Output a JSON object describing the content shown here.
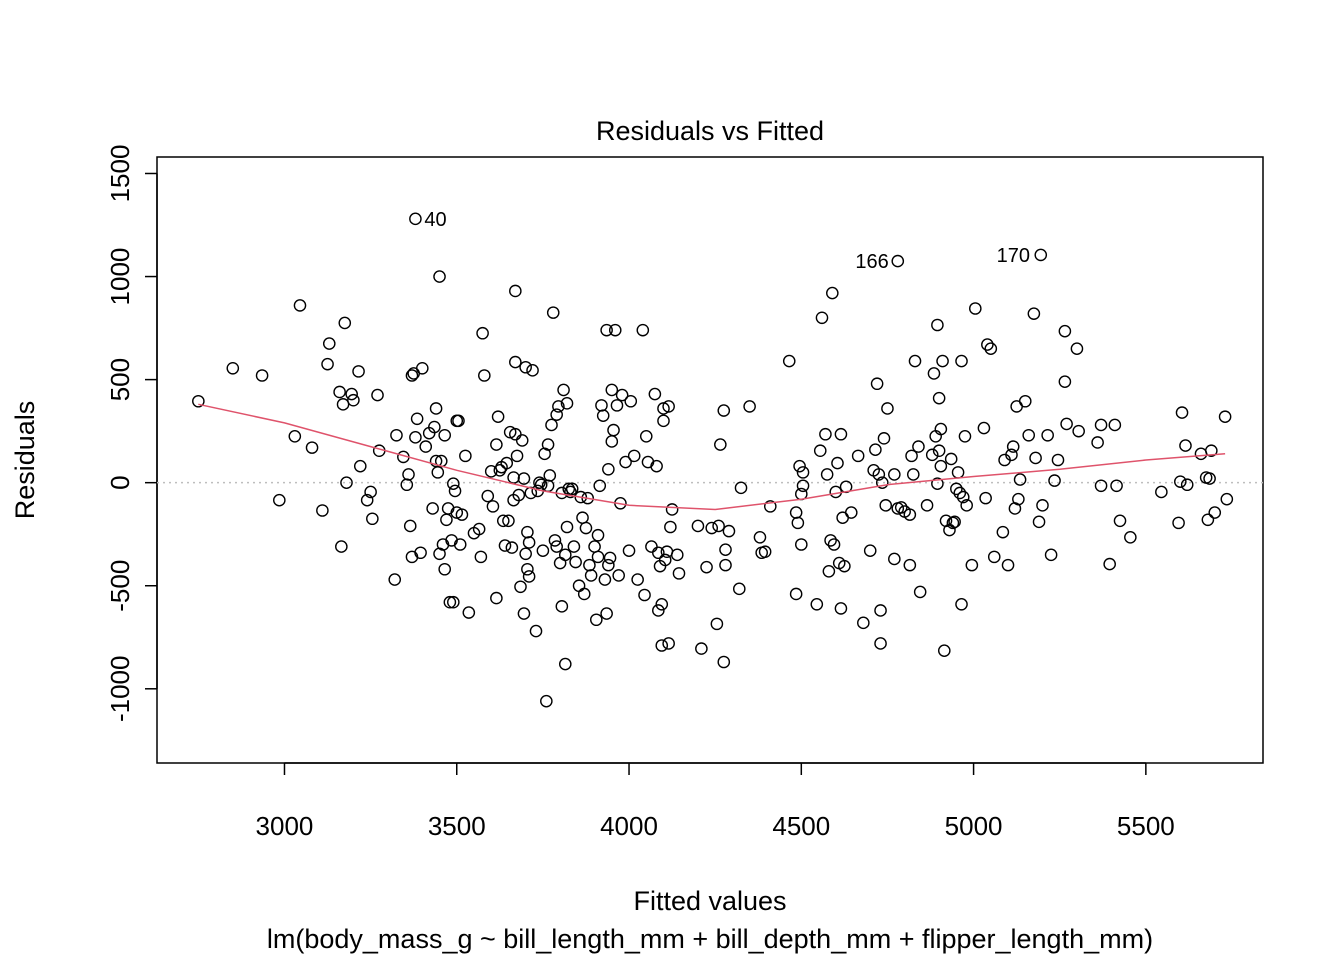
{
  "chart_data": {
    "type": "scatter",
    "title": "Residuals vs Fitted",
    "xlabel": "Fitted values",
    "subtitle": "lm(body_mass_g ~ bill_length_mm + bill_depth_mm + flipper_length_mm)",
    "ylabel": "Residuals",
    "xlim": [
      2630,
      5840
    ],
    "ylim": [
      -1360,
      1580
    ],
    "x_ticks": [
      3000,
      3500,
      4000,
      4500,
      5000,
      5500
    ],
    "x_tick_labels": [
      "3000",
      "3500",
      "4000",
      "4500",
      "5000",
      "5500"
    ],
    "y_ticks": [
      -1000,
      -500,
      0,
      500,
      1000,
      1500
    ],
    "y_tick_labels": [
      "-1000",
      "-500",
      "0",
      "500",
      "1000",
      "1500"
    ],
    "reference_line": {
      "y": 0,
      "style": "dotted",
      "color": "#bebebe"
    },
    "smoother": {
      "color": "#df536b",
      "x": [
        2750,
        3000,
        3250,
        3500,
        3750,
        4000,
        4250,
        4500,
        4750,
        5000,
        5250,
        5500,
        5730
      ],
      "y": [
        380,
        290,
        175,
        60,
        -40,
        -110,
        -130,
        -80,
        -10,
        30,
        65,
        110,
        140
      ]
    },
    "labeled_points": [
      {
        "label": "40",
        "x": 3380,
        "y": 1280
      },
      {
        "label": "166",
        "x": 4780,
        "y": 1075
      },
      {
        "label": "170",
        "x": 5190,
        "y": 1105
      }
    ],
    "points": [
      [
        2750,
        395
      ],
      [
        2850,
        555
      ],
      [
        2935,
        520
      ],
      [
        2985,
        -85
      ],
      [
        3030,
        225
      ],
      [
        3045,
        860
      ],
      [
        3080,
        170
      ],
      [
        3110,
        -135
      ],
      [
        3125,
        575
      ],
      [
        3130,
        675
      ],
      [
        3160,
        440
      ],
      [
        3165,
        -310
      ],
      [
        3170,
        380
      ],
      [
        3175,
        775
      ],
      [
        3180,
        0
      ],
      [
        3195,
        430
      ],
      [
        3200,
        400
      ],
      [
        3215,
        540
      ],
      [
        3220,
        80
      ],
      [
        3240,
        -85
      ],
      [
        3250,
        -45
      ],
      [
        3255,
        -175
      ],
      [
        3270,
        425
      ],
      [
        3275,
        155
      ],
      [
        3320,
        -470
      ],
      [
        3325,
        230
      ],
      [
        3345,
        125
      ],
      [
        3355,
        -10
      ],
      [
        3360,
        40
      ],
      [
        3365,
        -210
      ],
      [
        3370,
        -360
      ],
      [
        3370,
        520
      ],
      [
        3375,
        530
      ],
      [
        3380,
        1280
      ],
      [
        3380,
        220
      ],
      [
        3385,
        310
      ],
      [
        3395,
        -340
      ],
      [
        3400,
        555
      ],
      [
        3410,
        175
      ],
      [
        3420,
        240
      ],
      [
        3430,
        -125
      ],
      [
        3435,
        270
      ],
      [
        3440,
        360
      ],
      [
        3440,
        105
      ],
      [
        3445,
        50
      ],
      [
        3450,
        -345
      ],
      [
        3450,
        1000
      ],
      [
        3455,
        105
      ],
      [
        3460,
        -300
      ],
      [
        3465,
        230
      ],
      [
        3465,
        -420
      ],
      [
        3470,
        -180
      ],
      [
        3475,
        -125
      ],
      [
        3480,
        -580
      ],
      [
        3485,
        -280
      ],
      [
        3490,
        -580
      ],
      [
        3490,
        -5
      ],
      [
        3495,
        -40
      ],
      [
        3500,
        -145
      ],
      [
        3500,
        300
      ],
      [
        3505,
        300
      ],
      [
        3510,
        -300
      ],
      [
        3515,
        -155
      ],
      [
        3525,
        130
      ],
      [
        3535,
        -630
      ],
      [
        3550,
        -245
      ],
      [
        3565,
        -225
      ],
      [
        3570,
        -360
      ],
      [
        3575,
        725
      ],
      [
        3580,
        520
      ],
      [
        3590,
        -65
      ],
      [
        3600,
        55
      ],
      [
        3605,
        -115
      ],
      [
        3615,
        -560
      ],
      [
        3615,
        185
      ],
      [
        3620,
        320
      ],
      [
        3625,
        60
      ],
      [
        3630,
        75
      ],
      [
        3635,
        -185
      ],
      [
        3640,
        -305
      ],
      [
        3645,
        95
      ],
      [
        3650,
        -185
      ],
      [
        3655,
        245
      ],
      [
        3660,
        -315
      ],
      [
        3665,
        -85
      ],
      [
        3665,
        25
      ],
      [
        3670,
        235
      ],
      [
        3670,
        585
      ],
      [
        3670,
        930
      ],
      [
        3675,
        130
      ],
      [
        3680,
        -60
      ],
      [
        3685,
        -505
      ],
      [
        3690,
        205
      ],
      [
        3695,
        -635
      ],
      [
        3695,
        20
      ],
      [
        3700,
        -345
      ],
      [
        3700,
        560
      ],
      [
        3705,
        -420
      ],
      [
        3705,
        -240
      ],
      [
        3710,
        -455
      ],
      [
        3710,
        -290
      ],
      [
        3715,
        -50
      ],
      [
        3720,
        545
      ],
      [
        3730,
        -720
      ],
      [
        3735,
        -40
      ],
      [
        3740,
        0
      ],
      [
        3745,
        -10
      ],
      [
        3750,
        -330
      ],
      [
        3755,
        140
      ],
      [
        3760,
        -1060
      ],
      [
        3765,
        185
      ],
      [
        3765,
        -15
      ],
      [
        3770,
        35
      ],
      [
        3775,
        280
      ],
      [
        3780,
        825
      ],
      [
        3785,
        -280
      ],
      [
        3790,
        330
      ],
      [
        3790,
        -310
      ],
      [
        3795,
        370
      ],
      [
        3800,
        -390
      ],
      [
        3805,
        -50
      ],
      [
        3805,
        -600
      ],
      [
        3810,
        450
      ],
      [
        3815,
        -880
      ],
      [
        3815,
        -350
      ],
      [
        3820,
        385
      ],
      [
        3820,
        -215
      ],
      [
        3825,
        -30
      ],
      [
        3830,
        -45
      ],
      [
        3835,
        -30
      ],
      [
        3840,
        -310
      ],
      [
        3845,
        -385
      ],
      [
        3855,
        -500
      ],
      [
        3860,
        -70
      ],
      [
        3865,
        -170
      ],
      [
        3870,
        -540
      ],
      [
        3875,
        -220
      ],
      [
        3880,
        -75
      ],
      [
        3885,
        -400
      ],
      [
        3890,
        -450
      ],
      [
        3900,
        -310
      ],
      [
        3905,
        -665
      ],
      [
        3910,
        -360
      ],
      [
        3910,
        -255
      ],
      [
        3915,
        -15
      ],
      [
        3920,
        375
      ],
      [
        3925,
        325
      ],
      [
        3930,
        -470
      ],
      [
        3935,
        -635
      ],
      [
        3935,
        740
      ],
      [
        3940,
        65
      ],
      [
        3940,
        -400
      ],
      [
        3945,
        -365
      ],
      [
        3950,
        450
      ],
      [
        3950,
        200
      ],
      [
        3955,
        255
      ],
      [
        3960,
        740
      ],
      [
        3965,
        375
      ],
      [
        3970,
        -450
      ],
      [
        3975,
        -100
      ],
      [
        3980,
        425
      ],
      [
        3990,
        100
      ],
      [
        4000,
        -330
      ],
      [
        4005,
        395
      ],
      [
        4015,
        130
      ],
      [
        4025,
        -470
      ],
      [
        4040,
        740
      ],
      [
        4045,
        -545
      ],
      [
        4050,
        225
      ],
      [
        4055,
        100
      ],
      [
        4065,
        -310
      ],
      [
        4075,
        430
      ],
      [
        4080,
        80
      ],
      [
        4085,
        -340
      ],
      [
        4085,
        -620
      ],
      [
        4090,
        -405
      ],
      [
        4095,
        -590
      ],
      [
        4095,
        -790
      ],
      [
        4100,
        360
      ],
      [
        4100,
        300
      ],
      [
        4105,
        -375
      ],
      [
        4110,
        -335
      ],
      [
        4115,
        -780
      ],
      [
        4115,
        370
      ],
      [
        4120,
        -215
      ],
      [
        4125,
        -130
      ],
      [
        4140,
        -350
      ],
      [
        4145,
        -440
      ],
      [
        4200,
        -210
      ],
      [
        4210,
        -805
      ],
      [
        4225,
        -410
      ],
      [
        4240,
        -220
      ],
      [
        4255,
        -685
      ],
      [
        4260,
        -210
      ],
      [
        4265,
        185
      ],
      [
        4275,
        350
      ],
      [
        4275,
        -870
      ],
      [
        4280,
        -400
      ],
      [
        4280,
        -325
      ],
      [
        4290,
        -235
      ],
      [
        4320,
        -515
      ],
      [
        4325,
        -25
      ],
      [
        4350,
        370
      ],
      [
        4380,
        -265
      ],
      [
        4385,
        -340
      ],
      [
        4395,
        -335
      ],
      [
        4410,
        -115
      ],
      [
        4465,
        590
      ],
      [
        4485,
        -540
      ],
      [
        4485,
        -145
      ],
      [
        4490,
        -195
      ],
      [
        4495,
        80
      ],
      [
        4500,
        -300
      ],
      [
        4500,
        -55
      ],
      [
        4505,
        50
      ],
      [
        4505,
        -15
      ],
      [
        4545,
        -590
      ],
      [
        4555,
        155
      ],
      [
        4560,
        800
      ],
      [
        4570,
        235
      ],
      [
        4575,
        40
      ],
      [
        4580,
        -430
      ],
      [
        4585,
        -280
      ],
      [
        4590,
        920
      ],
      [
        4595,
        -300
      ],
      [
        4600,
        -45
      ],
      [
        4605,
        95
      ],
      [
        4610,
        -390
      ],
      [
        4615,
        -610
      ],
      [
        4615,
        235
      ],
      [
        4620,
        -170
      ],
      [
        4625,
        -405
      ],
      [
        4630,
        -20
      ],
      [
        4645,
        -145
      ],
      [
        4665,
        130
      ],
      [
        4680,
        -680
      ],
      [
        4700,
        -330
      ],
      [
        4710,
        60
      ],
      [
        4715,
        160
      ],
      [
        4720,
        480
      ],
      [
        4725,
        40
      ],
      [
        4730,
        -620
      ],
      [
        4730,
        -780
      ],
      [
        4735,
        0
      ],
      [
        4740,
        215
      ],
      [
        4745,
        -110
      ],
      [
        4750,
        360
      ],
      [
        4770,
        -370
      ],
      [
        4770,
        40
      ],
      [
        4780,
        -125
      ],
      [
        4780,
        1075
      ],
      [
        4790,
        -120
      ],
      [
        4800,
        -140
      ],
      [
        4815,
        -400
      ],
      [
        4815,
        -155
      ],
      [
        4820,
        130
      ],
      [
        4825,
        40
      ],
      [
        4830,
        590
      ],
      [
        4840,
        175
      ],
      [
        4845,
        -530
      ],
      [
        4865,
        -110
      ],
      [
        4880,
        135
      ],
      [
        4885,
        530
      ],
      [
        4890,
        225
      ],
      [
        4895,
        765
      ],
      [
        4895,
        -5
      ],
      [
        4900,
        410
      ],
      [
        4900,
        155
      ],
      [
        4905,
        80
      ],
      [
        4905,
        260
      ],
      [
        4910,
        590
      ],
      [
        4915,
        -815
      ],
      [
        4920,
        -185
      ],
      [
        4930,
        -230
      ],
      [
        4935,
        115
      ],
      [
        4940,
        -195
      ],
      [
        4945,
        -190
      ],
      [
        4950,
        -30
      ],
      [
        4955,
        50
      ],
      [
        4960,
        -50
      ],
      [
        4965,
        -590
      ],
      [
        4965,
        590
      ],
      [
        4970,
        -70
      ],
      [
        4975,
        225
      ],
      [
        4980,
        -110
      ],
      [
        4995,
        -400
      ],
      [
        5005,
        845
      ],
      [
        5030,
        265
      ],
      [
        5035,
        -75
      ],
      [
        5040,
        670
      ],
      [
        5050,
        650
      ],
      [
        5060,
        -360
      ],
      [
        5085,
        -240
      ],
      [
        5090,
        110
      ],
      [
        5100,
        -400
      ],
      [
        5110,
        135
      ],
      [
        5115,
        175
      ],
      [
        5120,
        -125
      ],
      [
        5125,
        370
      ],
      [
        5130,
        -80
      ],
      [
        5135,
        15
      ],
      [
        5150,
        395
      ],
      [
        5160,
        230
      ],
      [
        5175,
        820
      ],
      [
        5180,
        120
      ],
      [
        5190,
        -190
      ],
      [
        5195,
        1105
      ],
      [
        5200,
        -110
      ],
      [
        5215,
        230
      ],
      [
        5225,
        -350
      ],
      [
        5235,
        10
      ],
      [
        5245,
        110
      ],
      [
        5265,
        735
      ],
      [
        5265,
        490
      ],
      [
        5270,
        285
      ],
      [
        5300,
        650
      ],
      [
        5305,
        250
      ],
      [
        5360,
        195
      ],
      [
        5370,
        -15
      ],
      [
        5370,
        280
      ],
      [
        5395,
        -395
      ],
      [
        5410,
        280
      ],
      [
        5415,
        -15
      ],
      [
        5425,
        -185
      ],
      [
        5455,
        -265
      ],
      [
        5545,
        -45
      ],
      [
        5595,
        -195
      ],
      [
        5600,
        5
      ],
      [
        5605,
        340
      ],
      [
        5615,
        180
      ],
      [
        5620,
        -10
      ],
      [
        5660,
        140
      ],
      [
        5675,
        25
      ],
      [
        5680,
        -180
      ],
      [
        5685,
        20
      ],
      [
        5690,
        155
      ],
      [
        5700,
        -145
      ],
      [
        5730,
        320
      ],
      [
        5735,
        -80
      ]
    ]
  }
}
